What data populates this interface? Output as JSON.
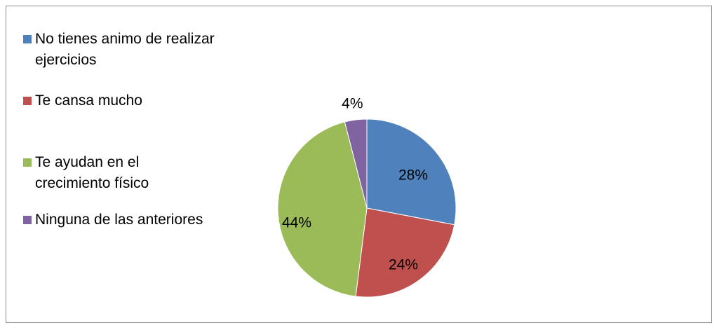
{
  "chart_data": {
    "type": "pie",
    "title": "",
    "categories": [
      "No tienes animo de realizar ejercicios",
      "Te cansa mucho",
      "Te ayudan en el crecimiento físico",
      "Ninguna de las anteriores"
    ],
    "values": [
      28,
      24,
      44,
      4
    ],
    "value_labels": [
      "28%",
      "24%",
      "44%",
      "4%"
    ],
    "colors": [
      "#4f81bd",
      "#c0504d",
      "#9bbb59",
      "#8064a2"
    ],
    "legend_position": "left"
  }
}
